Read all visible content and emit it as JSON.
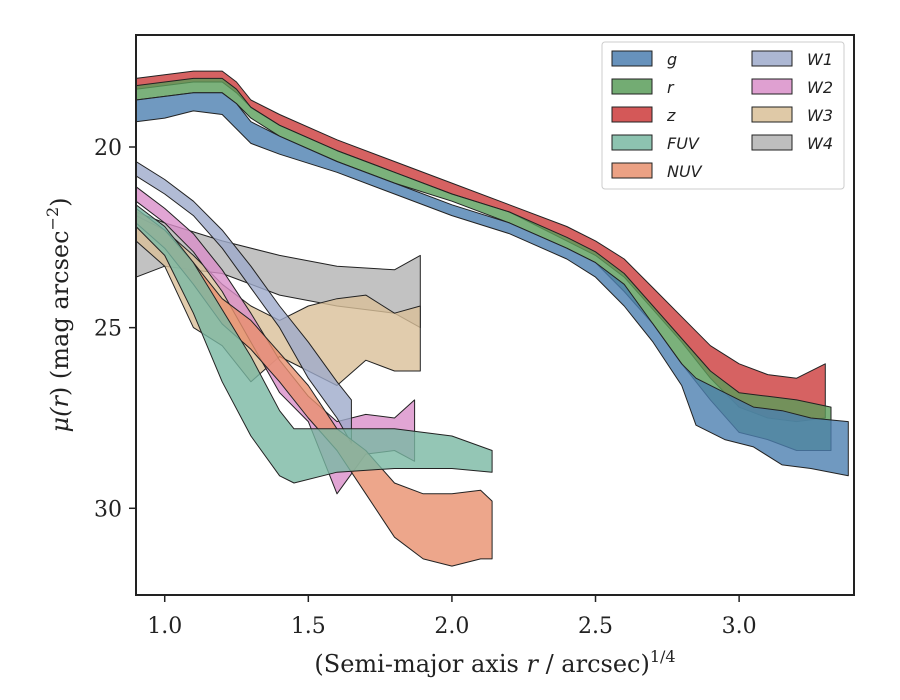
{
  "chart_data": {
    "type": "area",
    "xlabel_main": "(Semi-major axis ",
    "xlabel_var": "r",
    "xlabel_rest": " / arcsec)",
    "xlabel_exp": "1/4",
    "ylabel_main": "μ(",
    "ylabel_var": "r",
    "ylabel_rest": ") (mag arcsec",
    "ylabel_exp": "−2",
    "ylabel_close": ")",
    "xlim": [
      0.9,
      3.4
    ],
    "ylim": [
      32.4,
      16.9
    ],
    "x_ticks": [
      1.0,
      1.5,
      2.0,
      2.5,
      3.0
    ],
    "x_tick_labels": [
      "1.0",
      "1.5",
      "2.0",
      "2.5",
      "3.0"
    ],
    "y_ticks": [
      20,
      25,
      30
    ],
    "y_tick_labels": [
      "20",
      "25",
      "30"
    ],
    "grid": false,
    "legend_placement": "top-right",
    "legend_columns": 2,
    "series": [
      {
        "name": "g",
        "color": "#4c7fb0",
        "band": [
          [
            0.9,
            18.7,
            19.3
          ],
          [
            1.0,
            18.6,
            19.2
          ],
          [
            1.1,
            18.5,
            19.0
          ],
          [
            1.2,
            18.5,
            19.1
          ],
          [
            1.25,
            18.8,
            19.5
          ],
          [
            1.3,
            19.3,
            19.9
          ],
          [
            1.4,
            19.7,
            20.2
          ],
          [
            1.6,
            20.4,
            20.7
          ],
          [
            1.8,
            21.0,
            21.3
          ],
          [
            2.0,
            21.6,
            21.9
          ],
          [
            2.2,
            22.1,
            22.4
          ],
          [
            2.4,
            22.8,
            23.1
          ],
          [
            2.5,
            23.2,
            23.6
          ],
          [
            2.6,
            23.8,
            24.4
          ],
          [
            2.7,
            24.9,
            25.4
          ],
          [
            2.8,
            26.0,
            26.6
          ],
          [
            2.85,
            26.4,
            27.7
          ],
          [
            2.95,
            26.8,
            28.1
          ],
          [
            3.05,
            27.2,
            28.3
          ],
          [
            3.15,
            27.3,
            28.8
          ],
          [
            3.25,
            27.5,
            28.9
          ],
          [
            3.38,
            27.6,
            29.1
          ]
        ]
      },
      {
        "name": "r",
        "color": "#5a9e5a",
        "band": [
          [
            0.9,
            18.3,
            18.7
          ],
          [
            1.0,
            18.2,
            18.6
          ],
          [
            1.1,
            18.1,
            18.5
          ],
          [
            1.2,
            18.1,
            18.5
          ],
          [
            1.25,
            18.4,
            18.8
          ],
          [
            1.3,
            18.9,
            19.2
          ],
          [
            1.4,
            19.4,
            19.7
          ],
          [
            1.6,
            20.1,
            20.4
          ],
          [
            1.8,
            20.7,
            21.0
          ],
          [
            2.0,
            21.3,
            21.5
          ],
          [
            2.2,
            21.8,
            22.1
          ],
          [
            2.4,
            22.5,
            22.8
          ],
          [
            2.5,
            22.9,
            23.2
          ],
          [
            2.6,
            23.5,
            24.0
          ],
          [
            2.7,
            24.4,
            24.9
          ],
          [
            2.8,
            25.3,
            26.0
          ],
          [
            2.9,
            26.2,
            27.0
          ],
          [
            3.0,
            26.8,
            27.9
          ],
          [
            3.1,
            26.9,
            28.1
          ],
          [
            3.2,
            27.0,
            28.4
          ],
          [
            3.32,
            27.2,
            28.4
          ]
        ]
      },
      {
        "name": "z",
        "color": "#cc3b3b",
        "band": [
          [
            0.9,
            18.1,
            18.4
          ],
          [
            1.0,
            18.0,
            18.3
          ],
          [
            1.1,
            17.9,
            18.2
          ],
          [
            1.2,
            17.9,
            18.2
          ],
          [
            1.25,
            18.2,
            18.5
          ],
          [
            1.3,
            18.7,
            18.9
          ],
          [
            1.4,
            19.1,
            19.4
          ],
          [
            1.6,
            19.8,
            20.1
          ],
          [
            1.8,
            20.4,
            20.7
          ],
          [
            2.0,
            21.0,
            21.3
          ],
          [
            2.2,
            21.6,
            21.8
          ],
          [
            2.4,
            22.2,
            22.6
          ],
          [
            2.5,
            22.6,
            23.0
          ],
          [
            2.6,
            23.1,
            23.6
          ],
          [
            2.7,
            23.9,
            24.5
          ],
          [
            2.8,
            24.7,
            25.4
          ],
          [
            2.9,
            25.5,
            26.4
          ],
          [
            3.0,
            26.0,
            27.2
          ],
          [
            3.1,
            26.3,
            27.5
          ],
          [
            3.2,
            26.4,
            27.6
          ],
          [
            3.3,
            26.0,
            27.5
          ]
        ]
      },
      {
        "name": "FUV",
        "color": "#79b8a2",
        "band": [
          [
            0.9,
            21.6,
            22.2
          ],
          [
            1.0,
            22.2,
            23.0
          ],
          [
            1.1,
            23.2,
            24.6
          ],
          [
            1.2,
            24.5,
            26.5
          ],
          [
            1.3,
            25.8,
            28.0
          ],
          [
            1.4,
            27.3,
            29.1
          ],
          [
            1.45,
            27.8,
            29.3
          ],
          [
            1.6,
            27.8,
            29.0
          ],
          [
            1.8,
            27.8,
            28.9
          ],
          [
            2.0,
            28.0,
            28.9
          ],
          [
            2.14,
            28.4,
            29.0
          ]
        ]
      },
      {
        "name": "NUV",
        "color": "#e8906e",
        "band": [
          [
            0.9,
            21.7,
            22.1
          ],
          [
            1.0,
            22.3,
            22.8
          ],
          [
            1.1,
            23.2,
            23.8
          ],
          [
            1.2,
            24.2,
            24.9
          ],
          [
            1.3,
            24.8,
            25.6
          ],
          [
            1.4,
            25.7,
            26.5
          ],
          [
            1.5,
            26.6,
            27.5
          ],
          [
            1.6,
            27.8,
            28.4
          ],
          [
            1.7,
            28.4,
            29.6
          ],
          [
            1.8,
            29.3,
            30.8
          ],
          [
            1.9,
            29.6,
            31.4
          ],
          [
            2.0,
            29.6,
            31.6
          ],
          [
            2.1,
            29.5,
            31.4
          ],
          [
            2.14,
            29.8,
            31.4
          ]
        ]
      },
      {
        "name": "W1",
        "color": "#9eaacb",
        "band": [
          [
            0.9,
            20.4,
            20.8
          ],
          [
            1.0,
            20.9,
            21.3
          ],
          [
            1.1,
            21.5,
            21.9
          ],
          [
            1.2,
            22.3,
            22.8
          ],
          [
            1.3,
            23.3,
            23.9
          ],
          [
            1.4,
            24.4,
            25.0
          ],
          [
            1.5,
            25.4,
            26.4
          ],
          [
            1.6,
            26.5,
            27.5
          ],
          [
            1.65,
            27.0,
            28.2
          ]
        ]
      },
      {
        "name": "W2",
        "color": "#d98fc9",
        "band": [
          [
            0.9,
            21.1,
            21.5
          ],
          [
            1.0,
            21.7,
            22.1
          ],
          [
            1.1,
            22.4,
            22.9
          ],
          [
            1.2,
            23.4,
            24.0
          ],
          [
            1.3,
            24.6,
            25.4
          ],
          [
            1.4,
            25.9,
            26.8
          ],
          [
            1.5,
            26.9,
            27.6
          ],
          [
            1.6,
            27.6,
            29.6
          ],
          [
            1.7,
            27.4,
            28.5
          ],
          [
            1.8,
            27.5,
            28.4
          ],
          [
            1.87,
            27.0,
            28.7
          ]
        ]
      },
      {
        "name": "W3",
        "color": "#d9bf98",
        "band": [
          [
            0.9,
            21.9,
            22.6
          ],
          [
            1.0,
            22.3,
            23.3
          ],
          [
            1.1,
            23.0,
            25.0
          ],
          [
            1.2,
            23.8,
            25.5
          ],
          [
            1.3,
            24.4,
            26.5
          ],
          [
            1.4,
            24.8,
            25.8
          ],
          [
            1.5,
            24.4,
            26.2
          ],
          [
            1.6,
            24.2,
            26.6
          ],
          [
            1.7,
            24.1,
            25.9
          ],
          [
            1.8,
            24.6,
            26.2
          ],
          [
            1.89,
            24.4,
            26.2
          ]
        ]
      },
      {
        "name": "W4",
        "color": "#b3b3b3",
        "band": [
          [
            0.9,
            21.8,
            23.6
          ],
          [
            1.0,
            22.1,
            23.3
          ],
          [
            1.2,
            22.6,
            23.5
          ],
          [
            1.4,
            23.0,
            24.1
          ],
          [
            1.6,
            23.3,
            24.4
          ],
          [
            1.8,
            23.4,
            24.6
          ],
          [
            1.89,
            23.0,
            25.0
          ]
        ]
      }
    ]
  }
}
